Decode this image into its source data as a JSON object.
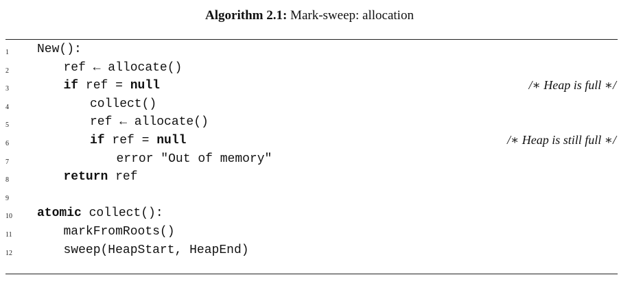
{
  "caption": {
    "label": "Algorithm 2.1:",
    "title": "Mark-sweep: allocation"
  },
  "lines": [
    {
      "num": "1",
      "indent": 0,
      "segments": [
        {
          "t": "New():",
          "kw": false
        }
      ],
      "comment": ""
    },
    {
      "num": "2",
      "indent": 1,
      "segments": [
        {
          "t": "ref ← allocate()",
          "kw": false
        }
      ],
      "comment": ""
    },
    {
      "num": "3",
      "indent": 1,
      "segments": [
        {
          "t": "if",
          "kw": true
        },
        {
          "t": " ref = ",
          "kw": false
        },
        {
          "t": "null",
          "kw": true
        }
      ],
      "comment": "/∗ Heap is full ∗/"
    },
    {
      "num": "4",
      "indent": 2,
      "segments": [
        {
          "t": "collect()",
          "kw": false
        }
      ],
      "comment": ""
    },
    {
      "num": "5",
      "indent": 2,
      "segments": [
        {
          "t": "ref ← allocate()",
          "kw": false
        }
      ],
      "comment": ""
    },
    {
      "num": "6",
      "indent": 2,
      "segments": [
        {
          "t": "if",
          "kw": true
        },
        {
          "t": " ref = ",
          "kw": false
        },
        {
          "t": "null",
          "kw": true
        }
      ],
      "comment": "/∗ Heap is still full ∗/"
    },
    {
      "num": "7",
      "indent": 3,
      "segments": [
        {
          "t": "error \"Out of memory\"",
          "kw": false
        }
      ],
      "comment": ""
    },
    {
      "num": "8",
      "indent": 1,
      "segments": [
        {
          "t": "return",
          "kw": true
        },
        {
          "t": " ref",
          "kw": false
        }
      ],
      "comment": ""
    },
    {
      "num": "9",
      "indent": 0,
      "segments": [],
      "comment": ""
    },
    {
      "num": "10",
      "indent": 0,
      "segments": [
        {
          "t": "atomic",
          "kw": true
        },
        {
          "t": " collect():",
          "kw": false
        }
      ],
      "comment": ""
    },
    {
      "num": "11",
      "indent": 1,
      "segments": [
        {
          "t": "markFromRoots()",
          "kw": false
        }
      ],
      "comment": ""
    },
    {
      "num": "12",
      "indent": 1,
      "segments": [
        {
          "t": "sweep(HeapStart, HeapEnd)",
          "kw": false
        }
      ],
      "comment": ""
    }
  ]
}
